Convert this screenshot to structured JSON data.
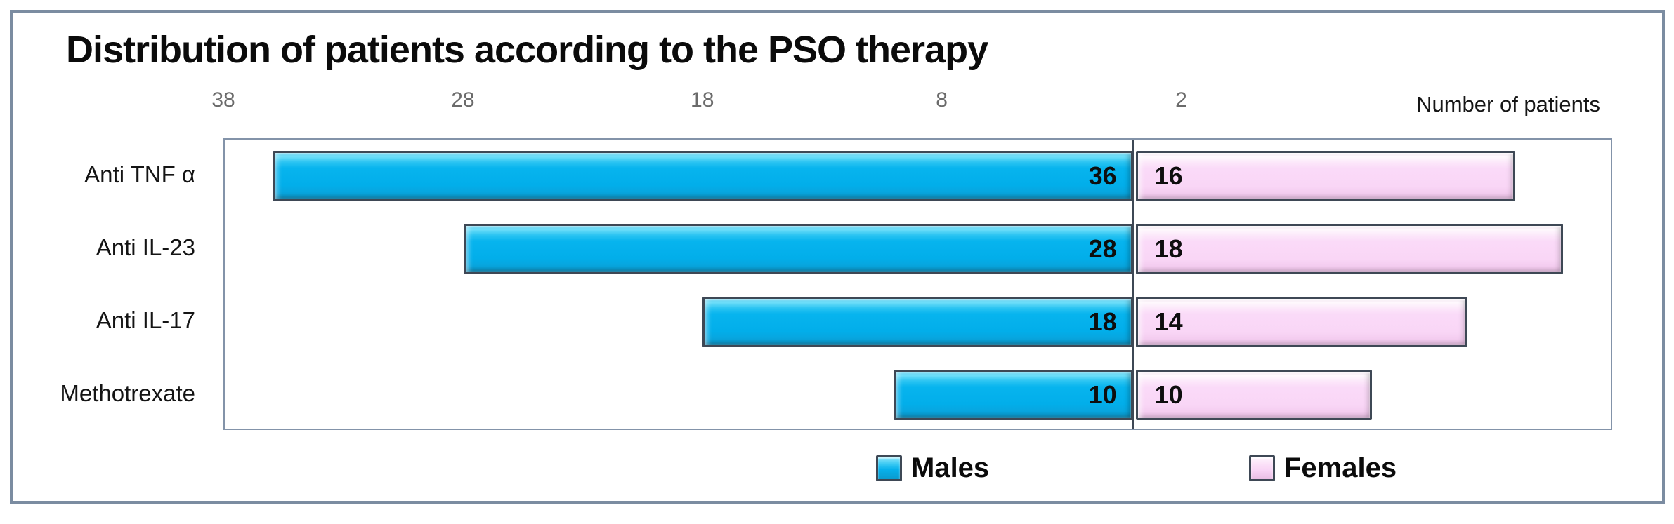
{
  "title": "Distribution of patients according to the PSO therapy",
  "axis_label": "Number of patients",
  "legend": {
    "males_label": "Males",
    "females_label": "Females"
  },
  "colors": {
    "male_bar": "#00b0f0",
    "female_bar": "#f8d6f5",
    "bar_outline": "#3e4855",
    "frame_border": "#7b8ca1",
    "plot_border": "#8393a9",
    "tick_text": "#6b6b6b"
  },
  "chart_data": {
    "type": "bar",
    "orientation": "horizontal-diverging",
    "title": "Distribution of patients according to the PSO therapy",
    "xlabel": "Number of patients",
    "categories": [
      "Anti TNF α",
      "Anti IL-23",
      "Anti IL-17",
      "Methotrexate"
    ],
    "series": [
      {
        "name": "Males",
        "values": [
          36,
          28,
          18,
          10
        ]
      },
      {
        "name": "Females",
        "values": [
          16,
          18,
          14,
          10
        ]
      }
    ],
    "x_tick_labels": [
      "38",
      "28",
      "18",
      "8",
      "2"
    ],
    "x_tick_values": [
      38,
      28,
      18,
      8,
      -2
    ],
    "axis_left_value": 38,
    "axis_right_value": -20,
    "grid": false,
    "legend_position": "bottom"
  }
}
